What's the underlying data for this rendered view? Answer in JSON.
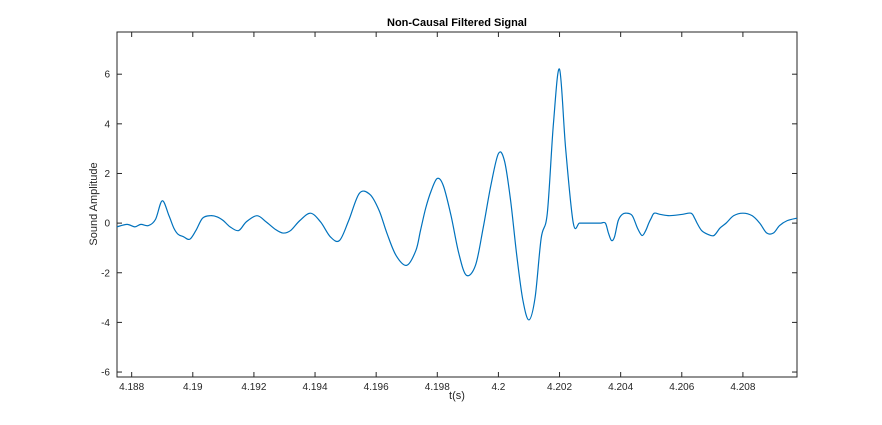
{
  "chart_data": {
    "type": "line",
    "title": "Non-Causal Filtered Signal",
    "xlabel": "t(s)",
    "ylabel": "Sound Amplitude",
    "xlim": [
      4.18752,
      4.20977
    ],
    "ylim": [
      -6.2,
      7.7
    ],
    "grid": false,
    "box": true,
    "line_color": "#0072BD",
    "axis_color": "#262626",
    "x_ticks": [
      {
        "value": 4.188,
        "label": "4.188"
      },
      {
        "value": 4.19,
        "label": "4.19"
      },
      {
        "value": 4.192,
        "label": "4.192"
      },
      {
        "value": 4.194,
        "label": "4.194"
      },
      {
        "value": 4.196,
        "label": "4.196"
      },
      {
        "value": 4.198,
        "label": "4.198"
      },
      {
        "value": 4.2,
        "label": "4.2"
      },
      {
        "value": 4.202,
        "label": "4.202"
      },
      {
        "value": 4.204,
        "label": "4.204"
      },
      {
        "value": 4.206,
        "label": "4.206"
      },
      {
        "value": 4.208,
        "label": "4.208"
      }
    ],
    "y_ticks": [
      {
        "value": -6,
        "label": "-6"
      },
      {
        "value": -4,
        "label": "-4"
      },
      {
        "value": -2,
        "label": "-2"
      },
      {
        "value": 0,
        "label": "0"
      },
      {
        "value": 2,
        "label": "2"
      },
      {
        "value": 4,
        "label": "4"
      },
      {
        "value": 6,
        "label": "6"
      }
    ],
    "series": [
      {
        "x": [
          4.18752,
          4.18785,
          4.1881,
          4.1883,
          4.18855,
          4.18878,
          4.189,
          4.18922,
          4.18938,
          4.18952,
          4.1897,
          4.1899,
          4.1901,
          4.19032,
          4.19058,
          4.1908,
          4.191,
          4.19122,
          4.1915,
          4.19175,
          4.1921,
          4.1924,
          4.1927,
          4.19295,
          4.1932,
          4.1935,
          4.19385,
          4.19418,
          4.1945,
          4.1948,
          4.1951,
          4.19545,
          4.1958,
          4.1961,
          4.19635,
          4.19665,
          4.197,
          4.1973,
          4.19745,
          4.19762,
          4.1978,
          4.198,
          4.1982,
          4.19845,
          4.1987,
          4.19895,
          4.19925,
          4.1995,
          4.19975,
          4.2,
          4.2002,
          4.2004,
          4.2006,
          4.2008,
          4.201,
          4.2012,
          4.2014,
          4.2016,
          4.2018,
          4.202,
          4.2022,
          4.20245,
          4.20265,
          4.20285,
          4.20305,
          4.2032,
          4.20335,
          4.2035,
          4.2036,
          4.2037,
          4.2038,
          4.20392,
          4.20405,
          4.2042,
          4.20438,
          4.20455,
          4.2047,
          4.20482,
          4.20492,
          4.205,
          4.2051,
          4.2053,
          4.2056,
          4.206,
          4.2063,
          4.20642,
          4.2065,
          4.20665,
          4.20685,
          4.20705,
          4.20725,
          4.20745,
          4.2077,
          4.208,
          4.2083,
          4.20855,
          4.20878,
          4.209,
          4.2092,
          4.20945,
          4.20977
        ],
        "values": [
          -0.15,
          -0.05,
          -0.15,
          -0.05,
          -0.1,
          0.15,
          0.9,
          0.3,
          -0.2,
          -0.45,
          -0.55,
          -0.65,
          -0.3,
          0.2,
          0.3,
          0.25,
          0.1,
          -0.15,
          -0.3,
          0.05,
          0.3,
          0.05,
          -0.25,
          -0.4,
          -0.3,
          0.1,
          0.4,
          0.05,
          -0.55,
          -0.7,
          0.1,
          1.2,
          1.15,
          0.5,
          -0.4,
          -1.3,
          -1.7,
          -1.1,
          -0.3,
          0.6,
          1.3,
          1.8,
          1.5,
          0.3,
          -1.2,
          -2.1,
          -1.7,
          -0.2,
          1.5,
          2.8,
          2.5,
          0.9,
          -1.3,
          -3.1,
          -3.9,
          -3.0,
          -0.6,
          0.4,
          4.0,
          6.2,
          3.0,
          0.0,
          0.0,
          0.0,
          0.0,
          0.0,
          0.0,
          0.0,
          -0.4,
          -0.7,
          -0.55,
          0.1,
          0.35,
          0.4,
          0.3,
          -0.2,
          -0.5,
          -0.3,
          0.0,
          0.2,
          0.4,
          0.35,
          0.3,
          0.35,
          0.4,
          0.2,
          0.0,
          -0.3,
          -0.45,
          -0.5,
          -0.2,
          0.0,
          0.3,
          0.4,
          0.3,
          0.0,
          -0.4,
          -0.4,
          -0.1,
          0.1,
          0.2
        ]
      }
    ]
  }
}
